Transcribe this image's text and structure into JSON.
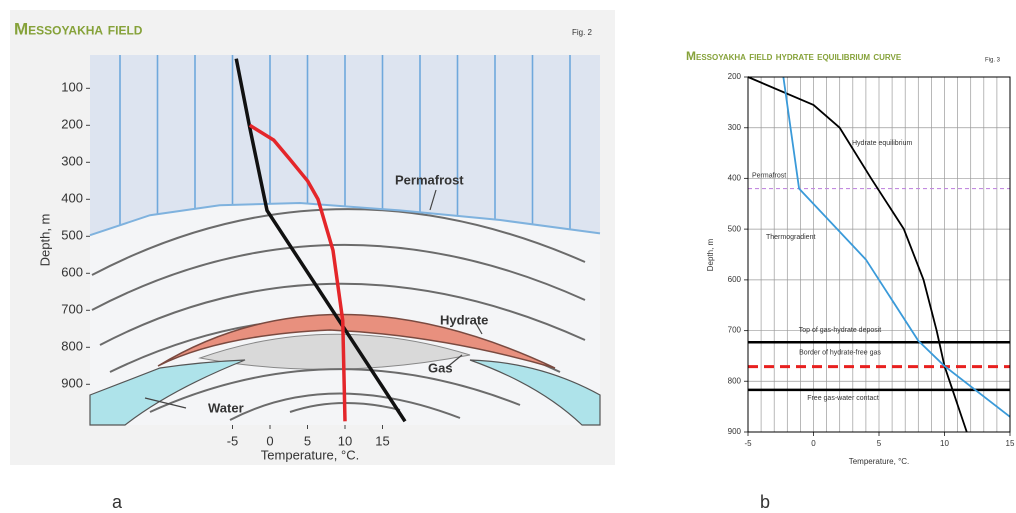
{
  "chart_data": [
    {
      "type": "line",
      "title": "Messoyakha field",
      "figure": "Fig. 2",
      "panel_label": "a",
      "x_label": "Temperature, °C.",
      "y_label": "Depth, m",
      "xlim": [
        -24,
        44
      ],
      "ylim": [
        10,
        1010
      ],
      "y_inverted": true,
      "xticks": [
        -5,
        0,
        5,
        10,
        15
      ],
      "yticks": [
        100,
        200,
        300,
        400,
        500,
        600,
        700,
        800,
        900
      ],
      "xgrid": [
        -20,
        -15,
        -10,
        -5,
        0,
        5,
        10,
        15,
        20,
        25,
        30,
        35,
        40
      ],
      "permafrost": {
        "name": "Permafrost",
        "color": "#7fb2de",
        "x": [
          -24,
          -16,
          -6.7,
          4,
          17.3,
          30.7,
          44
        ],
        "y": [
          497,
          443,
          416,
          410,
          430,
          456,
          492
        ]
      },
      "annotations": [
        "Hydrate",
        "Gas",
        "Water"
      ],
      "series": [
        {
          "color": "#111111",
          "x": [
            -4.5,
            -2.7,
            -0.4,
            18
          ],
          "y": [
            20,
            206,
            430,
            1000
          ]
        },
        {
          "color": "#e4262a",
          "x": [
            -2.7,
            0.5,
            2.7,
            5,
            6.4,
            8.4,
            9.7,
            10
          ],
          "y": [
            200,
            240,
            293,
            350,
            400,
            538,
            728,
            1000
          ]
        }
      ]
    },
    {
      "type": "line",
      "title": "Messoyakha field hydrate equilibrium curve",
      "figure": "Fig. 3",
      "panel_label": "b",
      "x_label": "Temperature, °C.",
      "y_label": "Depth, m",
      "xlim": [
        -5,
        15
      ],
      "ylim": [
        200,
        900
      ],
      "y_inverted": true,
      "xticks": [
        -5,
        0,
        5,
        10,
        15
      ],
      "yticks": [
        200,
        300,
        400,
        500,
        600,
        700,
        800,
        900
      ],
      "xgrid": [
        -5,
        -4,
        -3,
        -2,
        -1,
        0,
        1,
        2,
        3,
        4,
        5,
        6,
        7,
        8,
        9,
        10,
        11,
        12,
        13,
        14,
        15
      ],
      "series": [
        {
          "name": "Hydrate equilibrium",
          "color": "#000000",
          "x": [
            -5,
            0,
            2,
            4.4,
            6.9,
            8.4,
            9.4,
            10,
            11.7
          ],
          "y": [
            200,
            255,
            300,
            400,
            500,
            600,
            700,
            770,
            900
          ]
        },
        {
          "name": "Thermogradient",
          "color": "#3a9ad9",
          "x": [
            -2.3,
            -1.1,
            4,
            8,
            10,
            15
          ],
          "y": [
            200,
            420,
            560,
            720,
            770,
            870
          ]
        }
      ],
      "hlines": [
        {
          "label": "Permafrost",
          "value": 420,
          "color": "#c38be0",
          "dashed": true
        },
        {
          "label": "Top of gas-hydrate deposit",
          "value": 723,
          "color": "#000000",
          "dashed": false
        },
        {
          "label": "Border of hydrate-free gas",
          "value": 771,
          "color": "#e8201f",
          "dashed": true
        },
        {
          "label": "Free gas-water contact",
          "value": 817,
          "color": "#000000",
          "dashed": false
        }
      ]
    }
  ]
}
